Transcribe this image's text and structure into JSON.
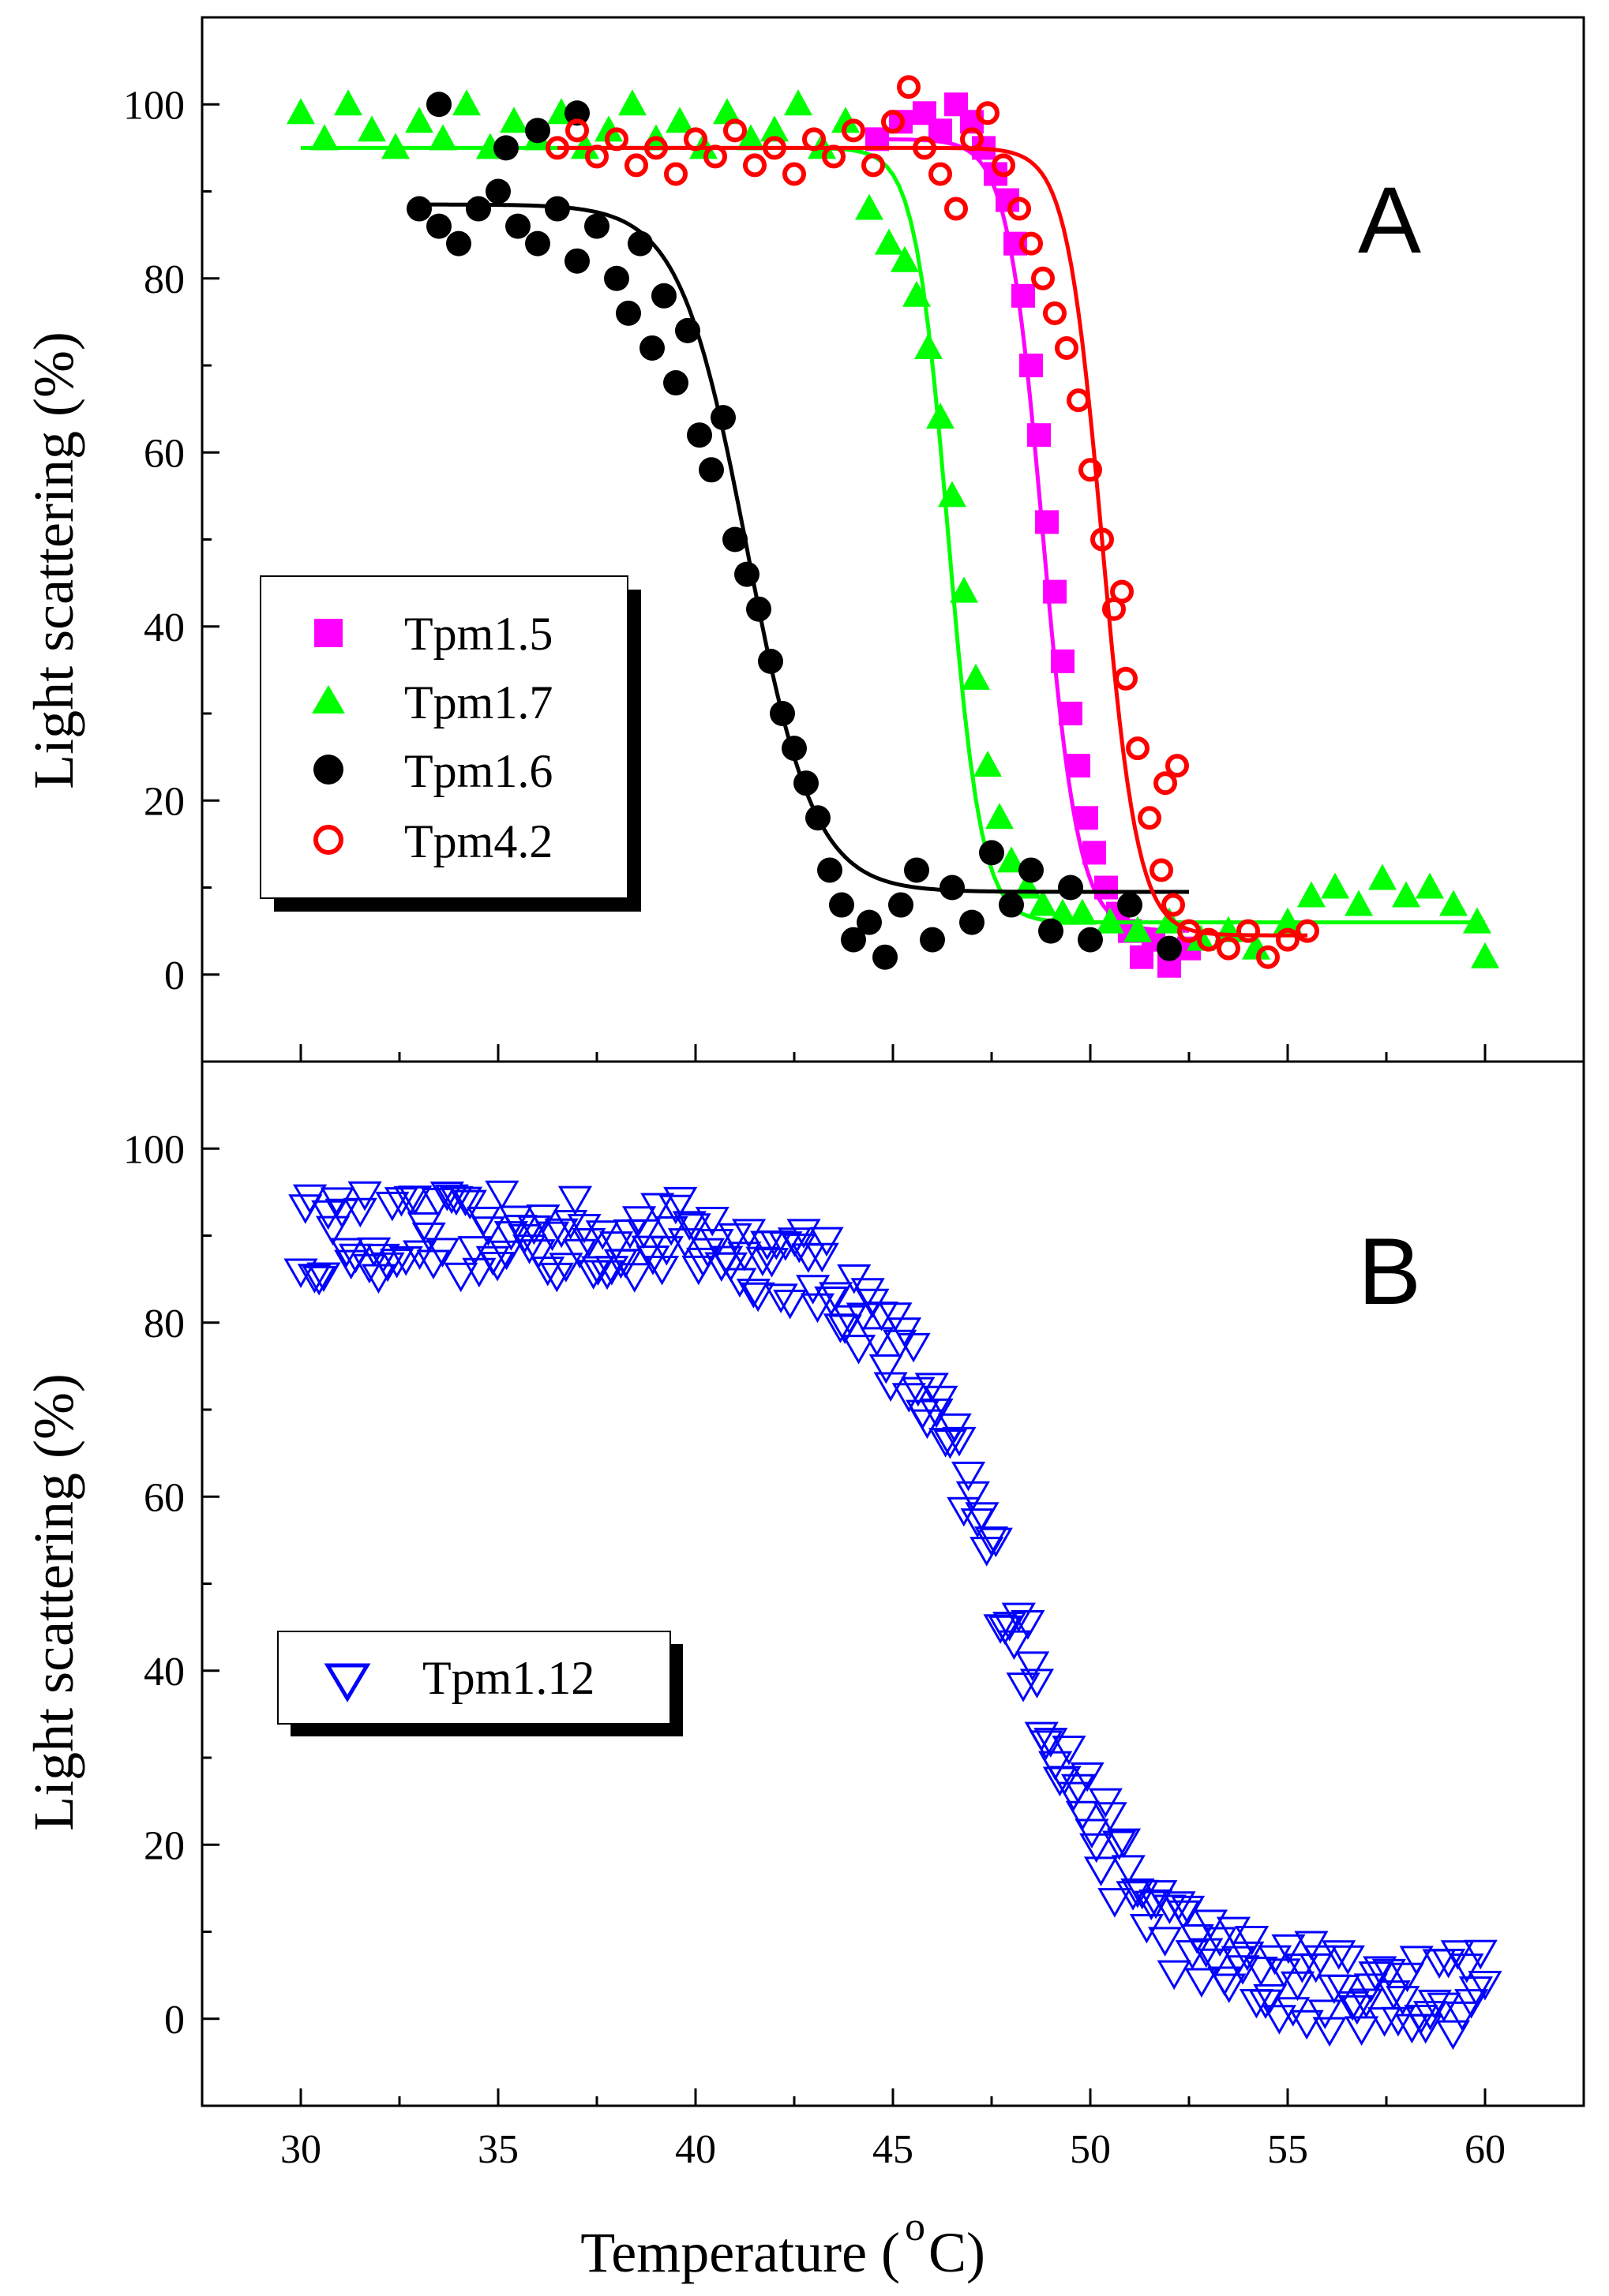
{
  "chart_data": [
    {
      "panel": "A",
      "type": "scatter",
      "xlabel_prefix": "Temperature (",
      "xlabel_degree": "o",
      "xlabel_suffix": "C)",
      "ylabel": "Light scattering (%)",
      "xlim": [
        27.5,
        62.5
      ],
      "ylim": [
        -10,
        110
      ],
      "xticks": [
        30,
        35,
        40,
        45,
        50,
        55,
        60
      ],
      "yticks": [
        0,
        20,
        40,
        60,
        80,
        100
      ],
      "tick_labels_y": [
        "0",
        "20",
        "40",
        "60",
        "80",
        "100"
      ],
      "panel_label": "A",
      "legend_position": "middle-left",
      "series": [
        {
          "name": "Tpm1.5",
          "marker": "square",
          "color": "#ff00ff",
          "filled": true,
          "points": [
            [
              44.6,
              96
            ],
            [
              45.2,
              98
            ],
            [
              45.8,
              99
            ],
            [
              46.2,
              97
            ],
            [
              46.6,
              100
            ],
            [
              47.0,
              98
            ],
            [
              47.3,
              95
            ],
            [
              47.6,
              92
            ],
            [
              47.9,
              89
            ],
            [
              48.1,
              84
            ],
            [
              48.3,
              78
            ],
            [
              48.5,
              70
            ],
            [
              48.7,
              62
            ],
            [
              48.9,
              52
            ],
            [
              49.1,
              44
            ],
            [
              49.3,
              36
            ],
            [
              49.5,
              30
            ],
            [
              49.7,
              24
            ],
            [
              49.9,
              18
            ],
            [
              50.1,
              14
            ],
            [
              50.4,
              10
            ],
            [
              50.7,
              7
            ],
            [
              51.0,
              5
            ],
            [
              51.3,
              2
            ],
            [
              51.6,
              4
            ],
            [
              52.0,
              1
            ],
            [
              52.5,
              3
            ]
          ],
          "fit": {
            "high": 96,
            "low": 5,
            "mid": 48.8,
            "width": 0.45,
            "xmin": 44.5,
            "xmax": 52.5
          }
        },
        {
          "name": "Tpm1.7",
          "marker": "triangle",
          "color": "#00ff00",
          "filled": true,
          "points": [
            [
              30.0,
              99
            ],
            [
              30.6,
              96
            ],
            [
              31.2,
              100
            ],
            [
              31.8,
              97
            ],
            [
              32.4,
              95
            ],
            [
              33.0,
              98
            ],
            [
              33.6,
              96
            ],
            [
              34.2,
              100
            ],
            [
              34.8,
              95
            ],
            [
              35.4,
              98
            ],
            [
              36.0,
              96
            ],
            [
              36.6,
              99
            ],
            [
              37.2,
              95
            ],
            [
              37.8,
              97
            ],
            [
              38.4,
              100
            ],
            [
              39.0,
              96
            ],
            [
              39.6,
              98
            ],
            [
              40.2,
              95
            ],
            [
              40.8,
              99
            ],
            [
              41.4,
              96
            ],
            [
              42.0,
              97
            ],
            [
              42.6,
              100
            ],
            [
              43.2,
              95
            ],
            [
              43.8,
              98
            ],
            [
              44.4,
              88
            ],
            [
              44.9,
              84
            ],
            [
              45.3,
              82
            ],
            [
              45.6,
              78
            ],
            [
              45.9,
              72
            ],
            [
              46.2,
              64
            ],
            [
              46.5,
              55
            ],
            [
              46.8,
              44
            ],
            [
              47.1,
              34
            ],
            [
              47.4,
              24
            ],
            [
              47.7,
              18
            ],
            [
              48.0,
              13
            ],
            [
              48.4,
              10
            ],
            [
              48.8,
              8
            ],
            [
              49.3,
              7
            ],
            [
              49.8,
              7
            ],
            [
              50.5,
              6
            ],
            [
              51.2,
              5
            ],
            [
              52.0,
              6
            ],
            [
              52.8,
              4
            ],
            [
              53.5,
              5
            ],
            [
              54.2,
              3
            ],
            [
              55.0,
              6
            ],
            [
              55.6,
              9
            ],
            [
              56.2,
              10
            ],
            [
              56.8,
              8
            ],
            [
              57.4,
              11
            ],
            [
              58.0,
              9
            ],
            [
              58.6,
              10
            ],
            [
              59.2,
              8
            ],
            [
              59.8,
              6
            ],
            [
              60.0,
              2
            ]
          ],
          "fit": {
            "high": 95,
            "low": 6,
            "mid": 46.4,
            "width": 0.42,
            "xmin": 30.0,
            "xmax": 60.0
          }
        },
        {
          "name": "Tpm1.6",
          "marker": "circle",
          "color": "#000000",
          "filled": true,
          "points": [
            [
              33.0,
              88
            ],
            [
              33.5,
              86
            ],
            [
              34.0,
              84
            ],
            [
              34.5,
              88
            ],
            [
              35.0,
              90
            ],
            [
              35.5,
              86
            ],
            [
              36.0,
              84
            ],
            [
              36.5,
              88
            ],
            [
              37.0,
              82
            ],
            [
              37.5,
              86
            ],
            [
              38.0,
              80
            ],
            [
              38.3,
              76
            ],
            [
              38.6,
              84
            ],
            [
              38.9,
              72
            ],
            [
              39.2,
              78
            ],
            [
              39.5,
              68
            ],
            [
              39.8,
              74
            ],
            [
              40.1,
              62
            ],
            [
              40.4,
              58
            ],
            [
              40.7,
              64
            ],
            [
              41.0,
              50
            ],
            [
              41.3,
              46
            ],
            [
              41.6,
              42
            ],
            [
              41.9,
              36
            ],
            [
              42.2,
              30
            ],
            [
              42.5,
              26
            ],
            [
              42.8,
              22
            ],
            [
              43.1,
              18
            ],
            [
              43.4,
              12
            ],
            [
              43.7,
              8
            ],
            [
              44.0,
              4
            ],
            [
              44.4,
              6
            ],
            [
              44.8,
              2
            ],
            [
              45.2,
              8
            ],
            [
              45.6,
              12
            ],
            [
              46.0,
              4
            ],
            [
              46.5,
              10
            ],
            [
              47.0,
              6
            ],
            [
              47.5,
              14
            ],
            [
              48.0,
              8
            ],
            [
              48.5,
              12
            ],
            [
              49.0,
              5
            ],
            [
              49.5,
              10
            ],
            [
              50.0,
              4
            ],
            [
              51.0,
              8
            ],
            [
              52.0,
              3
            ],
            [
              33.5,
              100
            ],
            [
              36.0,
              97
            ],
            [
              37.0,
              99
            ],
            [
              35.2,
              95
            ]
          ],
          "fit": {
            "high": 88.5,
            "low": 9.5,
            "mid": 41.3,
            "width": 0.85,
            "xmin": 33.0,
            "xmax": 52.5
          }
        },
        {
          "name": "Tpm4.2",
          "marker": "circle",
          "color": "#ff0000",
          "filled": false,
          "points": [
            [
              36.5,
              95
            ],
            [
              37.0,
              97
            ],
            [
              37.5,
              94
            ],
            [
              38.0,
              96
            ],
            [
              38.5,
              93
            ],
            [
              39.0,
              95
            ],
            [
              39.5,
              92
            ],
            [
              40.0,
              96
            ],
            [
              40.5,
              94
            ],
            [
              41.0,
              97
            ],
            [
              41.5,
              93
            ],
            [
              42.0,
              95
            ],
            [
              42.5,
              92
            ],
            [
              43.0,
              96
            ],
            [
              43.5,
              94
            ],
            [
              44.0,
              97
            ],
            [
              44.5,
              93
            ],
            [
              45.0,
              98
            ],
            [
              45.4,
              102
            ],
            [
              45.8,
              95
            ],
            [
              46.2,
              92
            ],
            [
              46.6,
              88
            ],
            [
              47.0,
              96
            ],
            [
              47.4,
              99
            ],
            [
              47.8,
              93
            ],
            [
              48.2,
              88
            ],
            [
              48.5,
              84
            ],
            [
              48.8,
              80
            ],
            [
              49.1,
              76
            ],
            [
              49.4,
              72
            ],
            [
              49.7,
              66
            ],
            [
              50.0,
              58
            ],
            [
              50.3,
              50
            ],
            [
              50.6,
              42
            ],
            [
              50.9,
              34
            ],
            [
              51.2,
              26
            ],
            [
              51.5,
              18
            ],
            [
              51.8,
              12
            ],
            [
              52.1,
              8
            ],
            [
              52.5,
              5
            ],
            [
              53.0,
              4
            ],
            [
              53.5,
              3
            ],
            [
              54.0,
              5
            ],
            [
              54.5,
              2
            ],
            [
              55.0,
              4
            ],
            [
              55.5,
              5
            ],
            [
              52.2,
              24
            ],
            [
              51.9,
              22
            ],
            [
              50.8,
              44
            ]
          ],
          "fit": {
            "high": 95,
            "low": 4.5,
            "mid": 50.3,
            "width": 0.45,
            "xmin": 36.5,
            "xmax": 55.5
          }
        }
      ]
    },
    {
      "panel": "B",
      "type": "scatter",
      "xlabel_prefix": "Temperature (",
      "xlabel_degree": "o",
      "xlabel_suffix": "C)",
      "ylabel": "Light scattering (%)",
      "xlim": [
        27.5,
        62.5
      ],
      "ylim": [
        -10,
        110
      ],
      "xticks": [
        30,
        35,
        40,
        45,
        50,
        55,
        60
      ],
      "yticks": [
        0,
        20,
        40,
        60,
        80,
        100
      ],
      "tick_labels_x": [
        "30",
        "35",
        "40",
        "45",
        "50",
        "55",
        "60"
      ],
      "tick_labels_y": [
        "0",
        "20",
        "40",
        "60",
        "80",
        "100"
      ],
      "panel_label": "B",
      "legend_position": "middle-left",
      "series": [
        {
          "name": "Tpm1.12",
          "marker": "triangle-down",
          "color": "#0000ff",
          "filled": false,
          "curve": {
            "high": 90,
            "low": 3,
            "mid": 48.0,
            "width": 1.7,
            "xmin": 30.0,
            "xmax": 60.0,
            "n": 260,
            "noise": 5
          }
        }
      ]
    }
  ]
}
